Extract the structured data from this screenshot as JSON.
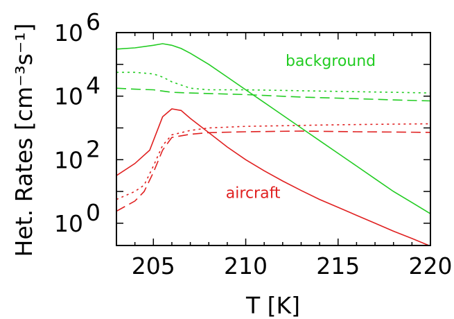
{
  "chart_data": {
    "type": "line",
    "xlabel": "T [K]",
    "ylabel": "Het. Rates [cm⁻³s⁻¹]",
    "xlim": [
      203,
      220
    ],
    "ylim_log10": [
      -0.7,
      6
    ],
    "y_scale": "log",
    "grid": false,
    "x_ticks": [
      {
        "value": 205,
        "label": "205"
      },
      {
        "value": 210,
        "label": "210"
      },
      {
        "value": 215,
        "label": "215"
      },
      {
        "value": 220,
        "label": "220"
      }
    ],
    "y_ticks": [
      {
        "exp": 0,
        "base": "10",
        "sup": "0"
      },
      {
        "exp": 2,
        "base": "10",
        "sup": "2"
      },
      {
        "exp": 4,
        "base": "10",
        "sup": "4"
      },
      {
        "exp": 6,
        "base": "10",
        "sup": "6"
      }
    ],
    "annotations": [
      {
        "text": "background",
        "color": "#22cc22",
        "x": 214.6,
        "y_log10": 4.95
      },
      {
        "text": "aircraft",
        "color": "#e02020",
        "x": 210.4,
        "y_log10": 0.8
      }
    ],
    "series": [
      {
        "color": "#22cc22",
        "dash": "solid",
        "points": [
          [
            203,
            5.48
          ],
          [
            204,
            5.52
          ],
          [
            205,
            5.6
          ],
          [
            205.5,
            5.65
          ],
          [
            206,
            5.6
          ],
          [
            206.5,
            5.5
          ],
          [
            207,
            5.35
          ],
          [
            208,
            5.0
          ],
          [
            209,
            4.6
          ],
          [
            210,
            4.2
          ],
          [
            211,
            3.8
          ],
          [
            212,
            3.4
          ],
          [
            213,
            3.0
          ],
          [
            214,
            2.6
          ],
          [
            215,
            2.2
          ],
          [
            216,
            1.8
          ],
          [
            217,
            1.4
          ],
          [
            218,
            1.0
          ],
          [
            219,
            0.65
          ],
          [
            220,
            0.3
          ]
        ]
      },
      {
        "color": "#22cc22",
        "dash": "dotted",
        "points": [
          [
            203,
            4.75
          ],
          [
            204,
            4.75
          ],
          [
            205,
            4.7
          ],
          [
            205.5,
            4.6
          ],
          [
            206,
            4.45
          ],
          [
            207,
            4.25
          ],
          [
            208,
            4.2
          ],
          [
            210,
            4.2
          ],
          [
            212,
            4.18
          ],
          [
            215,
            4.15
          ],
          [
            218,
            4.12
          ],
          [
            220,
            4.1
          ]
        ]
      },
      {
        "color": "#22cc22",
        "dash": "dashed",
        "points": [
          [
            203,
            4.25
          ],
          [
            204,
            4.22
          ],
          [
            205,
            4.2
          ],
          [
            206,
            4.12
          ],
          [
            207,
            4.1
          ],
          [
            210,
            4.05
          ],
          [
            213,
            3.97
          ],
          [
            216,
            3.92
          ],
          [
            218,
            3.88
          ],
          [
            220,
            3.85
          ]
        ]
      },
      {
        "color": "#e02020",
        "dash": "solid",
        "points": [
          [
            203,
            1.5
          ],
          [
            204,
            1.88
          ],
          [
            204.8,
            2.3
          ],
          [
            205.5,
            3.35
          ],
          [
            206,
            3.6
          ],
          [
            206.5,
            3.55
          ],
          [
            207,
            3.3
          ],
          [
            208,
            2.85
          ],
          [
            209,
            2.4
          ],
          [
            210,
            2.0
          ],
          [
            211,
            1.65
          ],
          [
            212,
            1.33
          ],
          [
            213,
            1.03
          ],
          [
            214,
            0.75
          ],
          [
            215,
            0.5
          ],
          [
            216,
            0.25
          ],
          [
            217,
            0.0
          ],
          [
            218,
            -0.25
          ],
          [
            219,
            -0.48
          ],
          [
            220,
            -0.72
          ]
        ]
      },
      {
        "color": "#e02020",
        "dash": "dotted",
        "points": [
          [
            203,
            0.75
          ],
          [
            204,
            1.0
          ],
          [
            204.5,
            1.2
          ],
          [
            205,
            1.8
          ],
          [
            205.5,
            2.45
          ],
          [
            206,
            2.78
          ],
          [
            207,
            2.92
          ],
          [
            208,
            3.0
          ],
          [
            210,
            3.05
          ],
          [
            212,
            3.07
          ],
          [
            215,
            3.1
          ],
          [
            218,
            3.12
          ],
          [
            220,
            3.13
          ]
        ]
      },
      {
        "color": "#e02020",
        "dash": "dashed",
        "points": [
          [
            203,
            0.38
          ],
          [
            204,
            0.7
          ],
          [
            204.5,
            1.0
          ],
          [
            205,
            1.6
          ],
          [
            205.5,
            2.3
          ],
          [
            206,
            2.7
          ],
          [
            207,
            2.8
          ],
          [
            208,
            2.85
          ],
          [
            210,
            2.88
          ],
          [
            213,
            2.9
          ],
          [
            216,
            2.88
          ],
          [
            218,
            2.87
          ],
          [
            220,
            2.86
          ]
        ]
      }
    ]
  }
}
